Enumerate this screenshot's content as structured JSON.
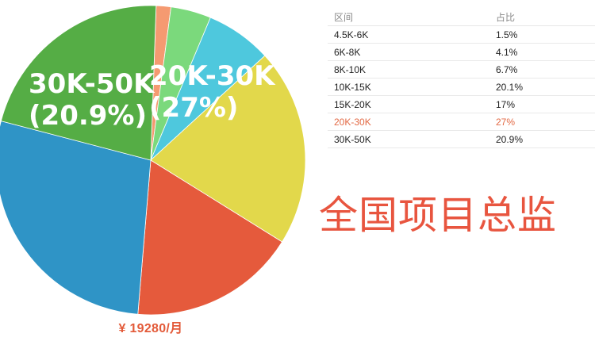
{
  "chart_data": {
    "type": "pie",
    "slices": [
      {
        "label": "4.5K-6K",
        "value": 1.5,
        "color": "#f59a71"
      },
      {
        "label": "6K-8K",
        "value": 4.1,
        "color": "#7bd97c"
      },
      {
        "label": "8K-10K",
        "value": 6.7,
        "color": "#4ec8dd"
      },
      {
        "label": "10K-15K",
        "value": 20.1,
        "color": "#e2d84b"
      },
      {
        "label": "15K-20K",
        "value": 17,
        "color": "#e55a3c"
      },
      {
        "label": "20K-30K",
        "value": 27,
        "color": "#2f94c6"
      },
      {
        "label": "30K-50K",
        "value": 20.9,
        "color": "#55ad45"
      }
    ],
    "slice_labels": [
      {
        "range": "20K-30K",
        "percent": "(27%)"
      },
      {
        "range": "30K-50K",
        "percent": "(20.9%)"
      }
    ]
  },
  "salary": "¥ 19280/月",
  "table": {
    "headers": [
      "区间",
      "占比"
    ],
    "rows": [
      {
        "range": "4.5K-6K",
        "share": "1.5%"
      },
      {
        "range": "6K-8K",
        "share": "4.1%"
      },
      {
        "range": "8K-10K",
        "share": "6.7%"
      },
      {
        "range": "10K-15K",
        "share": "20.1%"
      },
      {
        "range": "15K-20K",
        "share": "17%"
      },
      {
        "range": "20K-30K",
        "share": "27%",
        "highlight": true
      },
      {
        "range": "30K-50K",
        "share": "20.9%"
      }
    ]
  },
  "job_title": "全国项目总监"
}
